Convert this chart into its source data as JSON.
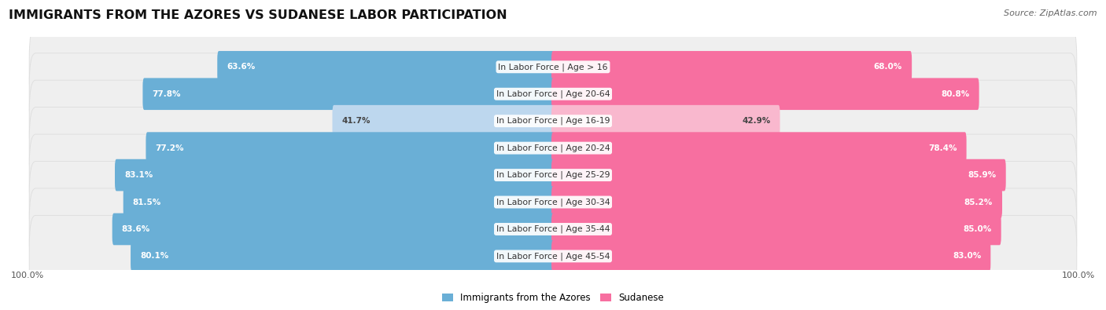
{
  "title": "IMMIGRANTS FROM THE AZORES VS SUDANESE LABOR PARTICIPATION",
  "source": "Source: ZipAtlas.com",
  "categories": [
    "In Labor Force | Age > 16",
    "In Labor Force | Age 20-64",
    "In Labor Force | Age 16-19",
    "In Labor Force | Age 20-24",
    "In Labor Force | Age 25-29",
    "In Labor Force | Age 30-34",
    "In Labor Force | Age 35-44",
    "In Labor Force | Age 45-54"
  ],
  "azores_values": [
    63.6,
    77.8,
    41.7,
    77.2,
    83.1,
    81.5,
    83.6,
    80.1
  ],
  "sudanese_values": [
    68.0,
    80.8,
    42.9,
    78.4,
    85.9,
    85.2,
    85.0,
    83.0
  ],
  "azores_color": "#6AAFD6",
  "azores_color_light": "#BDD7EE",
  "sudanese_color": "#F76FA0",
  "sudanese_color_light": "#F9B8CE",
  "bar_bg_color": "#EFEFEF",
  "bar_border_color": "#DDDDDD",
  "background_color": "#FFFFFF",
  "legend_azores": "Immigrants from the Azores",
  "legend_sudanese": "Sudanese",
  "title_fontsize": 11.5,
  "source_fontsize": 8.0,
  "label_fontsize": 7.8,
  "value_fontsize": 7.5,
  "axis_label_fontsize": 8.0
}
